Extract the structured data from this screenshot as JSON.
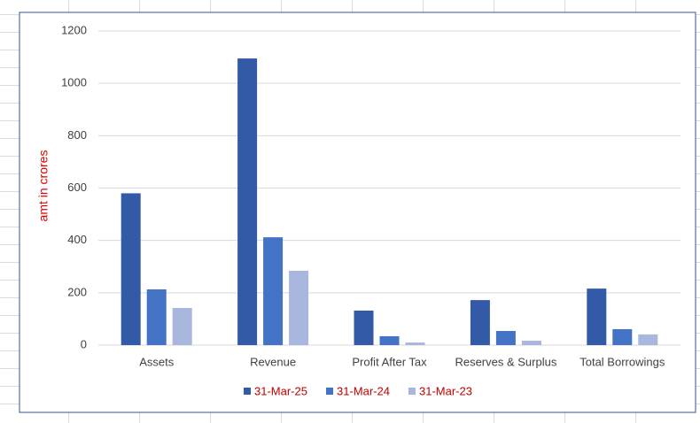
{
  "chart_data": {
    "type": "bar",
    "y_label": "amt in crores",
    "categories": [
      "Assets",
      "Revenue",
      "Profit After Tax",
      "Reserves & Surplus",
      "Total Borrowings"
    ],
    "series": [
      {
        "name": "31-Mar-25",
        "color": "#335aa7",
        "values": [
          580,
          1095,
          132,
          172,
          216
        ]
      },
      {
        "name": "31-Mar-24",
        "color": "#4472c4",
        "values": [
          213,
          412,
          34,
          54,
          61
        ]
      },
      {
        "name": "31-Mar-23",
        "color": "#a9b6de",
        "values": [
          142,
          284,
          10,
          17,
          41
        ]
      }
    ],
    "ylim": [
      0,
      1200
    ],
    "yticks": [
      0,
      200,
      400,
      600,
      800,
      1000,
      1200
    ],
    "grid": true,
    "legend": "bottom"
  }
}
